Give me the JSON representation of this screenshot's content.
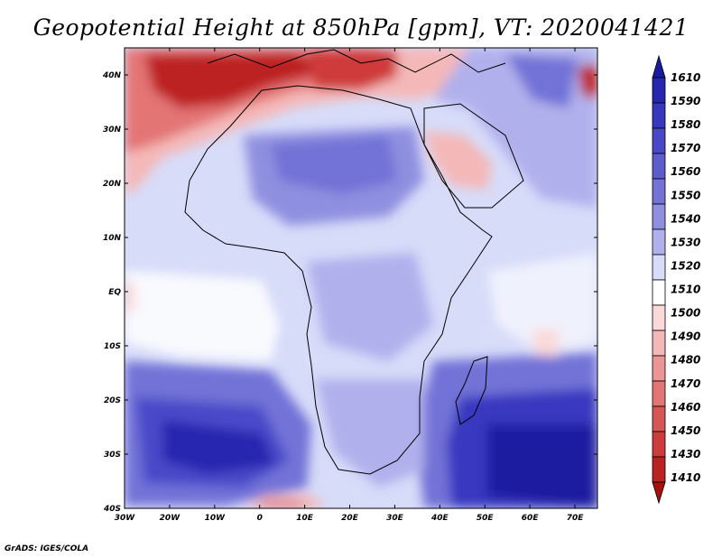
{
  "title": "Geopotential Height at 850hPa [gpm], VT: 2020041421",
  "credit": "GrADS: IGES/COLA",
  "map": {
    "region": "Africa and surroundings",
    "lon_range": [
      -30,
      75
    ],
    "lat_range": [
      -40,
      45
    ],
    "x_ticks": [
      "30W",
      "20W",
      "10W",
      "0",
      "10E",
      "20E",
      "30E",
      "40E",
      "50E",
      "60E",
      "70E"
    ],
    "y_ticks": [
      "40N",
      "30N",
      "20N",
      "10N",
      "EQ",
      "10S",
      "20S",
      "30S",
      "40S"
    ],
    "background_color": "#d7dcf9"
  },
  "legend": {
    "labels": [
      "1610",
      "1590",
      "1580",
      "1570",
      "1560",
      "1550",
      "1540",
      "1530",
      "1520",
      "1510",
      "1500",
      "1490",
      "1480",
      "1470",
      "1460",
      "1450",
      "1430",
      "1410"
    ],
    "colors": [
      "#1a1aa0",
      "#2626b0",
      "#3737c0",
      "#4848c9",
      "#5c5ccf",
      "#7272d7",
      "#8f8fe0",
      "#b0b0ec",
      "#d7dcf9",
      "#ffffff",
      "#fbd9d9",
      "#f4b8b8",
      "#ec9595",
      "#e37575",
      "#d95454",
      "#cf3b3b",
      "#bd2222",
      "#a81010"
    ]
  }
}
